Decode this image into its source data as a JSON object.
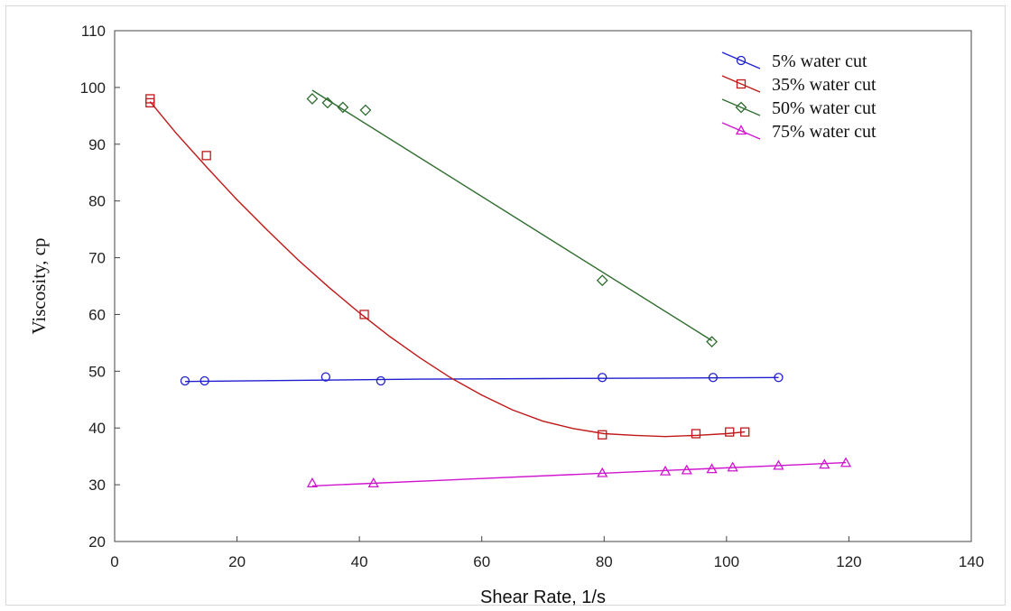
{
  "chart_data": {
    "type": "scatter",
    "title": "",
    "xlabel": "Shear Rate, 1/s",
    "ylabel": "Viscosity, cp",
    "xlim": [
      0,
      140
    ],
    "ylim": [
      20,
      110
    ],
    "xticks": [
      0,
      20,
      40,
      60,
      80,
      100,
      120,
      140
    ],
    "yticks": [
      20,
      30,
      40,
      50,
      60,
      70,
      80,
      90,
      100,
      110
    ],
    "grid": false,
    "legend_position": "top-right",
    "series": [
      {
        "name": "5% water cut",
        "color": "#1f1fd0",
        "marker": "circle",
        "points": [
          [
            11.5,
            48.3
          ],
          [
            14.7,
            48.3
          ],
          [
            34.5,
            49.0
          ],
          [
            43.5,
            48.3
          ],
          [
            79.7,
            48.9
          ],
          [
            97.8,
            48.9
          ],
          [
            108.5,
            48.9
          ]
        ],
        "fit": [
          [
            11.5,
            48.2
          ],
          [
            30,
            48.4
          ],
          [
            50,
            48.6
          ],
          [
            70,
            48.7
          ],
          [
            90,
            48.8
          ],
          [
            108.5,
            48.9
          ]
        ]
      },
      {
        "name": "35% water cut",
        "color": "#c01818",
        "marker": "square",
        "points": [
          [
            5.8,
            98.0
          ],
          [
            5.8,
            97.3
          ],
          [
            15.0,
            88.0
          ],
          [
            40.8,
            60.0
          ],
          [
            79.7,
            38.8
          ],
          [
            95.0,
            39.0
          ],
          [
            100.5,
            39.3
          ],
          [
            103.0,
            39.3
          ]
        ],
        "fit": [
          [
            5.8,
            97.5
          ],
          [
            10,
            92.0
          ],
          [
            15,
            86.0
          ],
          [
            20,
            80.2
          ],
          [
            25,
            74.8
          ],
          [
            30,
            69.6
          ],
          [
            35,
            64.8
          ],
          [
            40,
            60.3
          ],
          [
            45,
            56.1
          ],
          [
            50,
            52.3
          ],
          [
            55,
            48.8
          ],
          [
            60,
            45.8
          ],
          [
            65,
            43.2
          ],
          [
            70,
            41.2
          ],
          [
            75,
            39.9
          ],
          [
            80,
            39.0
          ],
          [
            85,
            38.7
          ],
          [
            90,
            38.5
          ],
          [
            95,
            38.7
          ],
          [
            100,
            39.0
          ],
          [
            103,
            39.3
          ]
        ]
      },
      {
        "name": "50% water cut",
        "color": "#2e6b2e",
        "marker": "diamond",
        "points": [
          [
            32.3,
            98.0
          ],
          [
            34.8,
            97.3
          ],
          [
            37.3,
            96.5
          ],
          [
            41.0,
            96.0
          ],
          [
            79.7,
            66.0
          ],
          [
            97.6,
            55.2
          ]
        ],
        "fit": [
          [
            32.3,
            99.5
          ],
          [
            97.6,
            55.4
          ]
        ]
      },
      {
        "name": "75% water cut",
        "color": "#d014d0",
        "marker": "triangle",
        "points": [
          [
            32.3,
            30.2
          ],
          [
            42.3,
            30.2
          ],
          [
            79.7,
            32.0
          ],
          [
            90.0,
            32.3
          ],
          [
            93.5,
            32.5
          ],
          [
            97.6,
            32.7
          ],
          [
            101.0,
            33.0
          ],
          [
            108.5,
            33.3
          ],
          [
            116.0,
            33.5
          ],
          [
            119.5,
            33.8
          ]
        ],
        "fit": [
          [
            32.3,
            29.8
          ],
          [
            119.5,
            33.9
          ]
        ]
      }
    ]
  }
}
